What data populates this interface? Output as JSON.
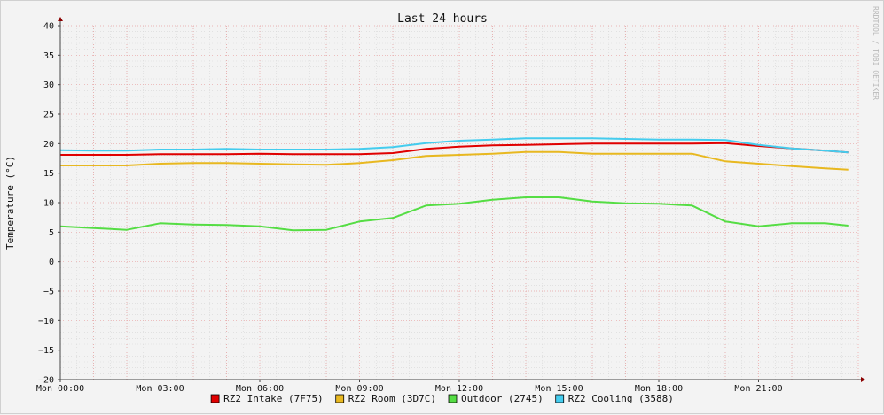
{
  "chart_data": {
    "type": "line",
    "title": "Last 24 hours",
    "ylabel": "Temperature (°C)",
    "xlabel": "",
    "ylim": [
      -20,
      40
    ],
    "y_ticks": [
      40,
      35,
      30,
      25,
      20,
      15,
      10,
      5,
      0,
      -5,
      -10,
      -15,
      -20
    ],
    "y_tick_labels": [
      "40",
      "35",
      "30",
      "25",
      "20",
      "15",
      "10",
      "5",
      "0",
      "−5",
      "−10",
      "−15",
      "−20"
    ],
    "x_unit": "hours since Mon 00:00",
    "xlim": [
      0,
      24.0
    ],
    "x_ticks": [
      0,
      3,
      6,
      9,
      12,
      15,
      18,
      21
    ],
    "x_tick_labels": [
      "Mon 00:00",
      "Mon 03:00",
      "Mon 06:00",
      "Mon 09:00",
      "Mon 12:00",
      "Mon 15:00",
      "Mon 18:00",
      "Mon 21:00"
    ],
    "grid": true,
    "legend_position": "bottom",
    "watermark": "RRDTOOL / TOBI OETIKER",
    "series": [
      {
        "name": "RZ2 Intake (7F75)",
        "color": "#e00000",
        "x": [
          0,
          1,
          2,
          3,
          4,
          5,
          6,
          7,
          8,
          9,
          10,
          11,
          12,
          13,
          14,
          15,
          16,
          17,
          18,
          19,
          20,
          21,
          22,
          23,
          23.7
        ],
        "y": [
          18.1,
          18.1,
          18.1,
          18.2,
          18.2,
          18.2,
          18.3,
          18.2,
          18.2,
          18.2,
          18.4,
          19.1,
          19.5,
          19.7,
          19.8,
          19.9,
          20.0,
          20.0,
          20.0,
          20.0,
          20.1,
          19.6,
          19.2,
          18.8,
          18.5
        ]
      },
      {
        "name": "RZ2 Room (3D7C)",
        "color": "#e8b820",
        "x": [
          0,
          1,
          2,
          3,
          4,
          5,
          6,
          7,
          8,
          9,
          10,
          11,
          12,
          13,
          14,
          15,
          16,
          17,
          18,
          19,
          20,
          21,
          22,
          23,
          23.7
        ],
        "y": [
          16.3,
          16.3,
          16.3,
          16.6,
          16.7,
          16.7,
          16.6,
          16.5,
          16.4,
          16.7,
          17.2,
          17.9,
          18.1,
          18.3,
          18.6,
          18.6,
          18.3,
          18.3,
          18.3,
          18.3,
          17.0,
          16.6,
          16.2,
          15.8,
          15.6
        ]
      },
      {
        "name": "Outdoor (2745)",
        "color": "#55dd44",
        "x": [
          0,
          1,
          2,
          3,
          4,
          5,
          6,
          7,
          8,
          9,
          10,
          11,
          12,
          13,
          14,
          15,
          16,
          17,
          18,
          19,
          20,
          21,
          22,
          23,
          23.7
        ],
        "y": [
          6.0,
          5.7,
          5.4,
          6.5,
          6.3,
          6.2,
          6.0,
          5.3,
          5.4,
          6.8,
          7.4,
          9.5,
          9.8,
          10.5,
          10.9,
          10.9,
          10.2,
          9.9,
          9.8,
          9.5,
          6.8,
          6.0,
          6.5,
          6.5,
          6.1
        ]
      },
      {
        "name": "RZ2 Cooling (3588)",
        "color": "#44ccee",
        "x": [
          0,
          1,
          2,
          3,
          4,
          5,
          6,
          7,
          8,
          9,
          10,
          11,
          12,
          13,
          14,
          15,
          16,
          17,
          18,
          19,
          20,
          21,
          22,
          23,
          23.7
        ],
        "y": [
          18.9,
          18.8,
          18.8,
          19.0,
          19.0,
          19.1,
          19.0,
          19.0,
          19.0,
          19.1,
          19.4,
          20.1,
          20.5,
          20.7,
          20.9,
          20.9,
          20.9,
          20.8,
          20.7,
          20.7,
          20.6,
          19.8,
          19.2,
          18.8,
          18.5
        ]
      }
    ]
  }
}
